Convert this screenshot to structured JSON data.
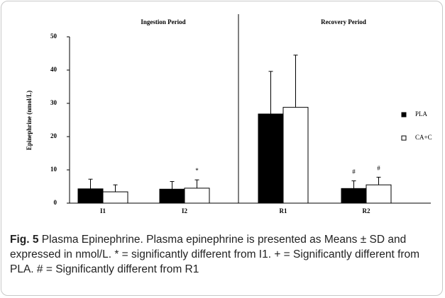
{
  "chart_data": {
    "type": "bar",
    "ylabel": "Epinephrine (nmol/L)",
    "sections": [
      "Ingestion Period",
      "Recovery Period"
    ],
    "categories": [
      "I1",
      "I2",
      "R1",
      "R2"
    ],
    "series": [
      {
        "name": "PLA",
        "color": "#000000",
        "values": [
          4.3,
          4.2,
          26.8,
          4.4
        ],
        "errors": [
          2.9,
          2.3,
          12.8,
          2.3
        ]
      },
      {
        "name": "CA+C",
        "color": "#ffffff",
        "values": [
          3.4,
          4.5,
          28.8,
          5.5
        ],
        "errors": [
          2.1,
          2.5,
          15.7,
          2.3
        ]
      }
    ],
    "annotations": [
      {
        "text": "*",
        "category": "I2",
        "series": "CA+C"
      },
      {
        "text": "#",
        "category": "R2",
        "series": "PLA"
      },
      {
        "text": "#",
        "category": "R2",
        "series": "CA+C"
      }
    ],
    "ylim": [
      0,
      50
    ],
    "yticks": [
      0,
      10,
      20,
      30,
      40,
      50
    ],
    "legend": "right"
  },
  "caption": {
    "label": "Fig. 5",
    "text": "Plasma Epinephrine. Plasma epinephrine is presented as Means ± SD and expressed in nmol/L. * = significantly different from I1. + = Significantly different from PLA. # = Significantly different from R1"
  }
}
